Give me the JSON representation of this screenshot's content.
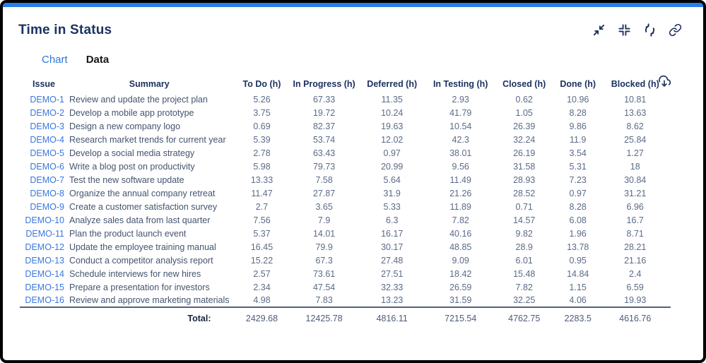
{
  "widget": {
    "title": "Time in Status",
    "toolbar": {
      "collapse_icon": "collapse-icon",
      "compress_icon": "compress-icon",
      "refresh_icon": "refresh-icon",
      "link_icon": "link-icon"
    },
    "tabs": [
      {
        "label": "Chart",
        "active": false
      },
      {
        "label": "Data",
        "active": true
      }
    ],
    "export_icon": "cloud-download-icon"
  },
  "table": {
    "columns": [
      "Issue",
      "Summary",
      "To Do (h)",
      "In Progress (h)",
      "Deferred (h)",
      "In Testing (h)",
      "Closed (h)",
      "Done (h)",
      "Blocked (h)"
    ],
    "rows": [
      {
        "issue": "DEMO-1",
        "summary": "Review and update the project plan",
        "values": [
          "5.26",
          "67.33",
          "11.35",
          "2.93",
          "0.62",
          "10.96",
          "10.81"
        ]
      },
      {
        "issue": "DEMO-2",
        "summary": "Develop a mobile app prototype",
        "values": [
          "3.75",
          "19.72",
          "10.24",
          "41.79",
          "1.05",
          "8.28",
          "13.63"
        ]
      },
      {
        "issue": "DEMO-3",
        "summary": "Design a new company logo",
        "values": [
          "0.69",
          "82.37",
          "19.63",
          "10.54",
          "26.39",
          "9.86",
          "8.62"
        ]
      },
      {
        "issue": "DEMO-4",
        "summary": "Research market trends for current year",
        "values": [
          "5.39",
          "53.74",
          "12.02",
          "42.3",
          "32.24",
          "11.9",
          "25.84"
        ]
      },
      {
        "issue": "DEMO-5",
        "summary": "Develop a social media strategy",
        "values": [
          "2.78",
          "63.43",
          "0.97",
          "38.01",
          "26.19",
          "3.54",
          "1.27"
        ]
      },
      {
        "issue": "DEMO-6",
        "summary": "Write a blog post on productivity",
        "values": [
          "5.98",
          "79.73",
          "20.99",
          "9.56",
          "31.58",
          "5.31",
          "18"
        ]
      },
      {
        "issue": "DEMO-7",
        "summary": "Test the new software update",
        "values": [
          "13.33",
          "7.58",
          "5.64",
          "11.49",
          "28.93",
          "7.23",
          "30.84"
        ]
      },
      {
        "issue": "DEMO-8",
        "summary": "Organize the annual company retreat",
        "values": [
          "11.47",
          "27.87",
          "31.9",
          "21.26",
          "28.52",
          "0.97",
          "31.21"
        ]
      },
      {
        "issue": "DEMO-9",
        "summary": "Create a customer satisfaction survey",
        "values": [
          "2.7",
          "3.65",
          "5.33",
          "11.89",
          "0.71",
          "8.28",
          "6.96"
        ]
      },
      {
        "issue": "DEMO-10",
        "summary": "Analyze sales data from last quarter",
        "values": [
          "7.56",
          "7.9",
          "6.3",
          "7.82",
          "14.57",
          "6.08",
          "16.7"
        ]
      },
      {
        "issue": "DEMO-11",
        "summary": "Plan the product launch event",
        "values": [
          "5.37",
          "14.01",
          "16.17",
          "40.16",
          "9.82",
          "1.96",
          "8.71"
        ]
      },
      {
        "issue": "DEMO-12",
        "summary": "Update the employee training manual",
        "values": [
          "16.45",
          "79.9",
          "30.17",
          "48.85",
          "28.9",
          "13.78",
          "28.21"
        ]
      },
      {
        "issue": "DEMO-13",
        "summary": "Conduct a competitor analysis report",
        "values": [
          "15.22",
          "67.3",
          "27.48",
          "9.09",
          "6.01",
          "0.95",
          "21.16"
        ]
      },
      {
        "issue": "DEMO-14",
        "summary": "Schedule interviews for new hires",
        "values": [
          "2.57",
          "73.61",
          "27.51",
          "18.42",
          "15.48",
          "14.84",
          "2.4"
        ]
      },
      {
        "issue": "DEMO-15",
        "summary": "Prepare a presentation for investors",
        "values": [
          "2.34",
          "47.54",
          "32.33",
          "26.59",
          "7.82",
          "1.15",
          "6.59"
        ]
      },
      {
        "issue": "DEMO-16",
        "summary": "Review and approve marketing materials",
        "values": [
          "4.98",
          "7.83",
          "13.23",
          "31.59",
          "32.25",
          "4.06",
          "19.93"
        ]
      }
    ],
    "total_label": "Total:",
    "totals": [
      "2429.68",
      "12425.78",
      "4816.11",
      "7215.54",
      "4762.75",
      "2283.5",
      "4616.76"
    ]
  },
  "colors": {
    "frame_border": "#000000",
    "accent_bar": "#2b7de9",
    "title_navy": "#1c3263",
    "header_navy": "#1d3160",
    "link_blue": "#3b77dd",
    "tab_inactive_blue": "#2c74e0",
    "tab_active": "#161616",
    "summary_text": "#44546f",
    "value_text": "#5b6b87"
  }
}
